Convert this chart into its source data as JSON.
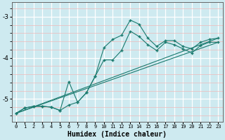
{
  "xlabel": "Humidex (Indice chaleur)",
  "bg_color": "#ceeaf0",
  "line_color": "#1a7a6e",
  "grid_major_color": "#ffffff",
  "grid_minor_color": "#f0b8b8",
  "xlim": [
    -0.5,
    23.5
  ],
  "ylim": [
    -5.55,
    -2.65
  ],
  "yticks": [
    -5,
    -4,
    -3
  ],
  "xticks": [
    0,
    1,
    2,
    3,
    4,
    5,
    6,
    7,
    8,
    9,
    10,
    11,
    12,
    13,
    14,
    15,
    16,
    17,
    18,
    19,
    20,
    21,
    22,
    23
  ],
  "curve1_x": [
    0,
    1,
    2,
    3,
    4,
    5,
    6,
    7,
    8,
    9,
    10,
    11,
    12,
    13,
    14,
    15,
    16,
    17,
    18,
    19,
    20,
    21,
    22,
    23
  ],
  "curve1_y": [
    -5.35,
    -5.22,
    -5.18,
    -5.18,
    -5.2,
    -5.28,
    -5.15,
    -5.08,
    -4.85,
    -4.45,
    -3.75,
    -3.55,
    -3.45,
    -3.08,
    -3.18,
    -3.52,
    -3.72,
    -3.58,
    -3.58,
    -3.72,
    -3.78,
    -3.62,
    -3.55,
    -3.52
  ],
  "curve2_x": [
    0,
    1,
    2,
    3,
    4,
    5,
    6,
    7,
    8,
    9,
    10,
    11,
    12,
    13,
    14,
    15,
    16,
    17,
    18,
    19,
    20,
    21,
    22,
    23
  ],
  "curve2_y": [
    -5.35,
    -5.22,
    -5.18,
    -5.18,
    -5.2,
    -5.28,
    -4.58,
    -5.08,
    -4.85,
    -4.45,
    -4.05,
    -4.05,
    -3.82,
    -3.35,
    -3.48,
    -3.68,
    -3.82,
    -3.62,
    -3.68,
    -3.78,
    -3.88,
    -3.7,
    -3.62,
    -3.62
  ],
  "trend1_x": [
    0,
    23
  ],
  "trend1_y": [
    -5.35,
    -3.52
  ],
  "trend2_x": [
    0,
    23
  ],
  "trend2_y": [
    -5.35,
    -3.62
  ]
}
